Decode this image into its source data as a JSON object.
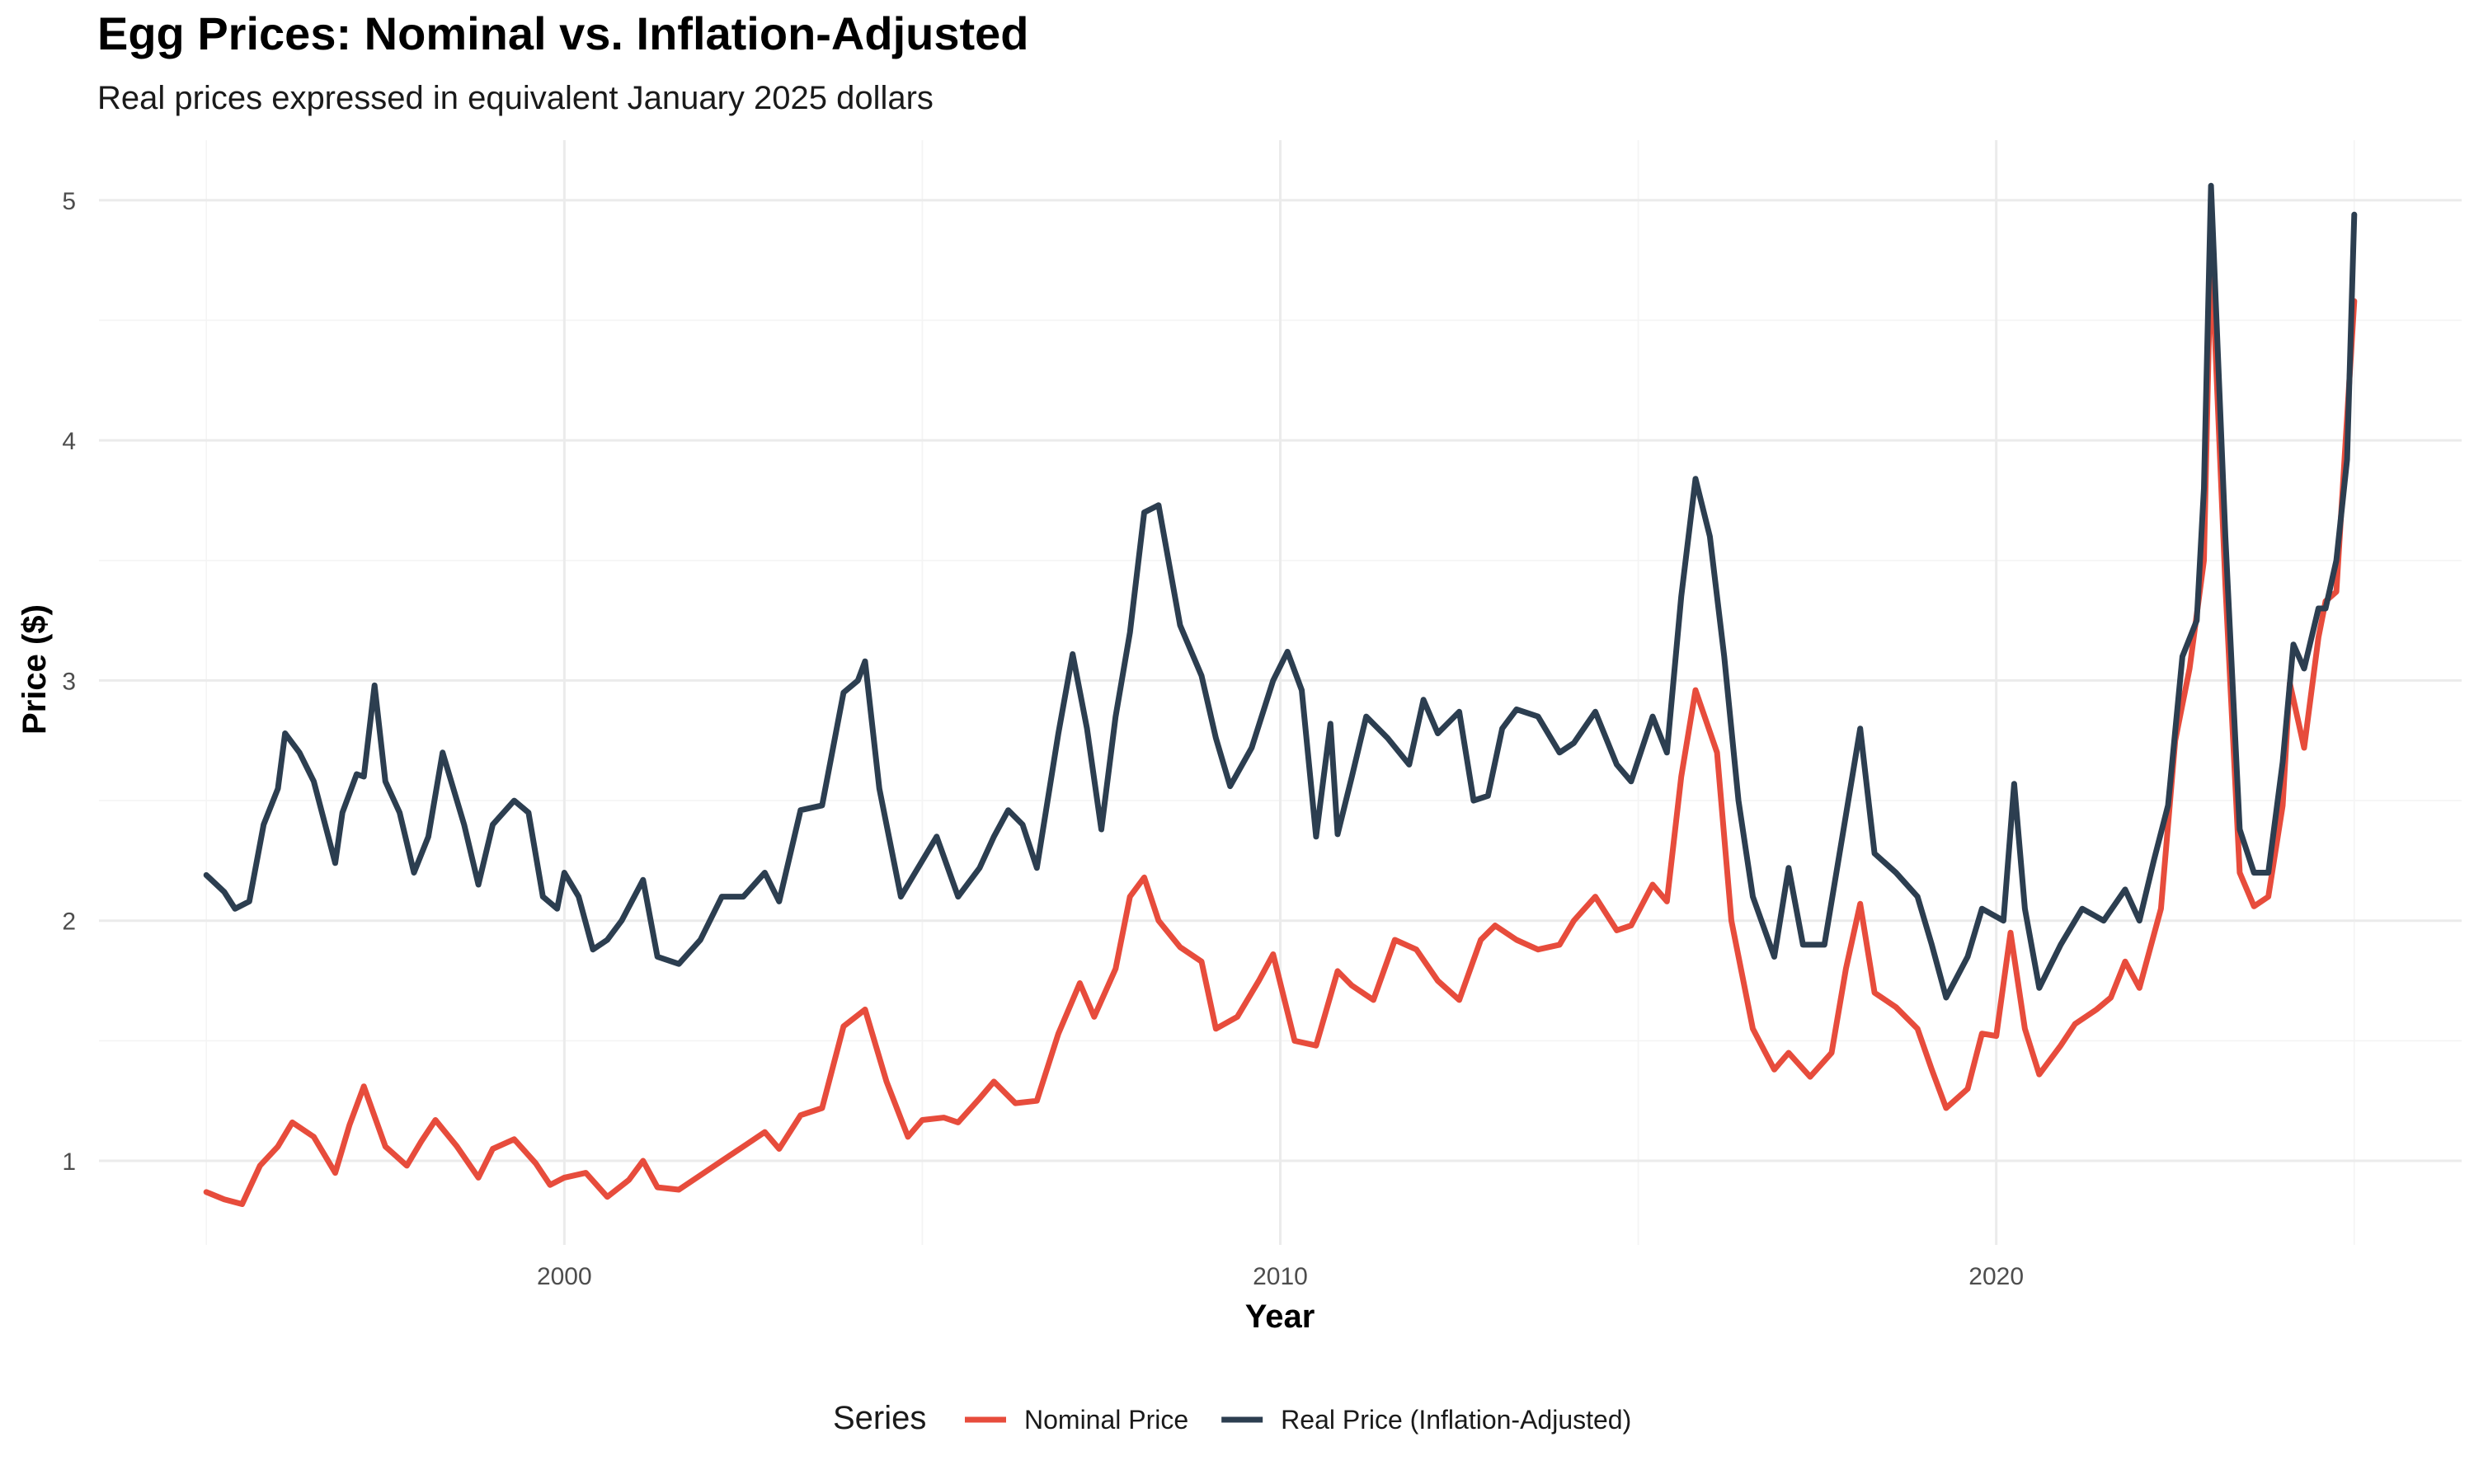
{
  "chart_data": {
    "type": "line",
    "title": "Egg Prices: Nominal vs. Inflation-Adjusted",
    "subtitle": "Real prices expressed in equivalent January 2025 dollars",
    "xlabel": "Year",
    "ylabel": "Price ($)",
    "xlim": [
      1993.5,
      2026.5
    ],
    "ylim": [
      0.65,
      5.25
    ],
    "x_ticks": [
      2000,
      2010,
      2020
    ],
    "y_ticks": [
      1,
      2,
      3,
      4,
      5
    ],
    "grid": true,
    "legend": {
      "title": "Series",
      "position": "bottom"
    },
    "series": [
      {
        "name": "Nominal Price",
        "color": "#E74C3C",
        "points": [
          [
            1995.0,
            0.87
          ],
          [
            1995.25,
            0.84
          ],
          [
            1995.5,
            0.82
          ],
          [
            1995.75,
            0.98
          ],
          [
            1996.0,
            1.06
          ],
          [
            1996.2,
            1.16
          ],
          [
            1996.5,
            1.1
          ],
          [
            1996.8,
            0.95
          ],
          [
            1997.0,
            1.15
          ],
          [
            1997.2,
            1.31
          ],
          [
            1997.5,
            1.06
          ],
          [
            1997.8,
            0.98
          ],
          [
            1998.0,
            1.08
          ],
          [
            1998.2,
            1.17
          ],
          [
            1998.5,
            1.06
          ],
          [
            1998.8,
            0.93
          ],
          [
            1999.0,
            1.05
          ],
          [
            1999.3,
            1.09
          ],
          [
            1999.6,
            0.99
          ],
          [
            1999.8,
            0.9
          ],
          [
            2000.0,
            0.93
          ],
          [
            2000.3,
            0.95
          ],
          [
            2000.6,
            0.85
          ],
          [
            2000.9,
            0.92
          ],
          [
            2001.1,
            1.0
          ],
          [
            2001.3,
            0.89
          ],
          [
            2001.6,
            0.88
          ],
          [
            2001.9,
            0.94
          ],
          [
            2002.2,
            1.0
          ],
          [
            2002.5,
            1.06
          ],
          [
            2002.8,
            1.12
          ],
          [
            2003.0,
            1.05
          ],
          [
            2003.3,
            1.19
          ],
          [
            2003.6,
            1.22
          ],
          [
            2003.9,
            1.56
          ],
          [
            2004.2,
            1.63
          ],
          [
            2004.5,
            1.33
          ],
          [
            2004.8,
            1.1
          ],
          [
            2005.0,
            1.17
          ],
          [
            2005.3,
            1.18
          ],
          [
            2005.5,
            1.16
          ],
          [
            2005.8,
            1.26
          ],
          [
            2006.0,
            1.33
          ],
          [
            2006.3,
            1.24
          ],
          [
            2006.6,
            1.25
          ],
          [
            2006.9,
            1.53
          ],
          [
            2007.2,
            1.74
          ],
          [
            2007.4,
            1.6
          ],
          [
            2007.7,
            1.8
          ],
          [
            2007.9,
            2.1
          ],
          [
            2008.1,
            2.18
          ],
          [
            2008.3,
            2.0
          ],
          [
            2008.6,
            1.89
          ],
          [
            2008.9,
            1.83
          ],
          [
            2009.1,
            1.55
          ],
          [
            2009.4,
            1.6
          ],
          [
            2009.7,
            1.75
          ],
          [
            2009.9,
            1.86
          ],
          [
            2010.2,
            1.5
          ],
          [
            2010.5,
            1.48
          ],
          [
            2010.8,
            1.79
          ],
          [
            2011.0,
            1.73
          ],
          [
            2011.3,
            1.67
          ],
          [
            2011.6,
            1.92
          ],
          [
            2011.9,
            1.88
          ],
          [
            2012.2,
            1.75
          ],
          [
            2012.5,
            1.67
          ],
          [
            2012.8,
            1.92
          ],
          [
            2013.0,
            1.98
          ],
          [
            2013.3,
            1.92
          ],
          [
            2013.6,
            1.88
          ],
          [
            2013.9,
            1.9
          ],
          [
            2014.1,
            2.0
          ],
          [
            2014.4,
            2.1
          ],
          [
            2014.7,
            1.96
          ],
          [
            2014.9,
            1.98
          ],
          [
            2015.2,
            2.15
          ],
          [
            2015.4,
            2.08
          ],
          [
            2015.6,
            2.6
          ],
          [
            2015.8,
            2.96
          ],
          [
            2016.1,
            2.7
          ],
          [
            2016.3,
            2.0
          ],
          [
            2016.6,
            1.55
          ],
          [
            2016.9,
            1.38
          ],
          [
            2017.1,
            1.45
          ],
          [
            2017.4,
            1.35
          ],
          [
            2017.7,
            1.45
          ],
          [
            2017.9,
            1.8
          ],
          [
            2018.1,
            2.07
          ],
          [
            2018.3,
            1.7
          ],
          [
            2018.6,
            1.64
          ],
          [
            2018.9,
            1.55
          ],
          [
            2019.1,
            1.38
          ],
          [
            2019.3,
            1.22
          ],
          [
            2019.6,
            1.3
          ],
          [
            2019.8,
            1.53
          ],
          [
            2020.0,
            1.52
          ],
          [
            2020.2,
            1.95
          ],
          [
            2020.4,
            1.55
          ],
          [
            2020.6,
            1.36
          ],
          [
            2020.9,
            1.48
          ],
          [
            2021.1,
            1.57
          ],
          [
            2021.4,
            1.63
          ],
          [
            2021.6,
            1.68
          ],
          [
            2021.8,
            1.83
          ],
          [
            2022.0,
            1.72
          ],
          [
            2022.3,
            2.05
          ],
          [
            2022.5,
            2.75
          ],
          [
            2022.7,
            3.05
          ],
          [
            2022.9,
            3.5
          ],
          [
            2023.0,
            4.82
          ],
          [
            2023.2,
            3.4
          ],
          [
            2023.4,
            2.2
          ],
          [
            2023.6,
            2.06
          ],
          [
            2023.8,
            2.1
          ],
          [
            2024.0,
            2.48
          ],
          [
            2024.1,
            2.99
          ],
          [
            2024.3,
            2.72
          ],
          [
            2024.5,
            3.18
          ],
          [
            2024.6,
            3.33
          ],
          [
            2024.75,
            3.37
          ],
          [
            2025.0,
            4.58
          ]
        ]
      },
      {
        "name": "Real Price (Inflation-Adjusted)",
        "color": "#2C3E50",
        "points": [
          [
            1995.0,
            2.19
          ],
          [
            1995.25,
            2.12
          ],
          [
            1995.4,
            2.05
          ],
          [
            1995.6,
            2.08
          ],
          [
            1995.8,
            2.4
          ],
          [
            1996.0,
            2.55
          ],
          [
            1996.1,
            2.78
          ],
          [
            1996.3,
            2.7
          ],
          [
            1996.5,
            2.58
          ],
          [
            1996.8,
            2.24
          ],
          [
            1996.9,
            2.45
          ],
          [
            1997.1,
            2.61
          ],
          [
            1997.2,
            2.6
          ],
          [
            1997.35,
            2.98
          ],
          [
            1997.5,
            2.58
          ],
          [
            1997.7,
            2.45
          ],
          [
            1997.9,
            2.2
          ],
          [
            1998.1,
            2.35
          ],
          [
            1998.3,
            2.7
          ],
          [
            1998.6,
            2.4
          ],
          [
            1998.8,
            2.15
          ],
          [
            1999.0,
            2.4
          ],
          [
            1999.3,
            2.5
          ],
          [
            1999.5,
            2.45
          ],
          [
            1999.7,
            2.1
          ],
          [
            1999.9,
            2.05
          ],
          [
            2000.0,
            2.2
          ],
          [
            2000.2,
            2.1
          ],
          [
            2000.4,
            1.88
          ],
          [
            2000.6,
            1.92
          ],
          [
            2000.8,
            2.0
          ],
          [
            2001.1,
            2.17
          ],
          [
            2001.3,
            1.85
          ],
          [
            2001.6,
            1.82
          ],
          [
            2001.9,
            1.92
          ],
          [
            2002.2,
            2.1
          ],
          [
            2002.5,
            2.1
          ],
          [
            2002.8,
            2.2
          ],
          [
            2003.0,
            2.08
          ],
          [
            2003.3,
            2.46
          ],
          [
            2003.6,
            2.48
          ],
          [
            2003.9,
            2.95
          ],
          [
            2004.1,
            3.0
          ],
          [
            2004.2,
            3.08
          ],
          [
            2004.4,
            2.55
          ],
          [
            2004.7,
            2.1
          ],
          [
            2004.9,
            2.2
          ],
          [
            2005.2,
            2.35
          ],
          [
            2005.5,
            2.1
          ],
          [
            2005.8,
            2.22
          ],
          [
            2006.0,
            2.35
          ],
          [
            2006.2,
            2.46
          ],
          [
            2006.4,
            2.4
          ],
          [
            2006.6,
            2.22
          ],
          [
            2006.9,
            2.78
          ],
          [
            2007.1,
            3.11
          ],
          [
            2007.3,
            2.8
          ],
          [
            2007.5,
            2.38
          ],
          [
            2007.7,
            2.85
          ],
          [
            2007.9,
            3.2
          ],
          [
            2008.1,
            3.7
          ],
          [
            2008.3,
            3.73
          ],
          [
            2008.6,
            3.23
          ],
          [
            2008.9,
            3.02
          ],
          [
            2009.1,
            2.76
          ],
          [
            2009.3,
            2.56
          ],
          [
            2009.6,
            2.72
          ],
          [
            2009.9,
            3.0
          ],
          [
            2010.1,
            3.12
          ],
          [
            2010.3,
            2.96
          ],
          [
            2010.5,
            2.35
          ],
          [
            2010.7,
            2.82
          ],
          [
            2010.8,
            2.36
          ],
          [
            2011.0,
            2.6
          ],
          [
            2011.2,
            2.85
          ],
          [
            2011.5,
            2.76
          ],
          [
            2011.8,
            2.65
          ],
          [
            2012.0,
            2.92
          ],
          [
            2012.2,
            2.78
          ],
          [
            2012.5,
            2.87
          ],
          [
            2012.7,
            2.5
          ],
          [
            2012.9,
            2.52
          ],
          [
            2013.1,
            2.8
          ],
          [
            2013.3,
            2.88
          ],
          [
            2013.6,
            2.85
          ],
          [
            2013.9,
            2.7
          ],
          [
            2014.1,
            2.74
          ],
          [
            2014.4,
            2.87
          ],
          [
            2014.7,
            2.65
          ],
          [
            2014.9,
            2.58
          ],
          [
            2015.2,
            2.85
          ],
          [
            2015.4,
            2.7
          ],
          [
            2015.6,
            3.35
          ],
          [
            2015.8,
            3.84
          ],
          [
            2016.0,
            3.6
          ],
          [
            2016.2,
            3.1
          ],
          [
            2016.4,
            2.5
          ],
          [
            2016.6,
            2.1
          ],
          [
            2016.9,
            1.85
          ],
          [
            2017.1,
            2.22
          ],
          [
            2017.3,
            1.9
          ],
          [
            2017.6,
            1.9
          ],
          [
            2017.9,
            2.44
          ],
          [
            2018.1,
            2.8
          ],
          [
            2018.3,
            2.28
          ],
          [
            2018.6,
            2.2
          ],
          [
            2018.9,
            2.1
          ],
          [
            2019.1,
            1.9
          ],
          [
            2019.3,
            1.68
          ],
          [
            2019.6,
            1.85
          ],
          [
            2019.8,
            2.05
          ],
          [
            2020.1,
            2.0
          ],
          [
            2020.25,
            2.57
          ],
          [
            2020.4,
            2.05
          ],
          [
            2020.6,
            1.72
          ],
          [
            2020.9,
            1.9
          ],
          [
            2021.2,
            2.05
          ],
          [
            2021.5,
            2.0
          ],
          [
            2021.8,
            2.13
          ],
          [
            2022.0,
            2.0
          ],
          [
            2022.2,
            2.25
          ],
          [
            2022.4,
            2.48
          ],
          [
            2022.6,
            3.1
          ],
          [
            2022.8,
            3.25
          ],
          [
            2022.9,
            3.8
          ],
          [
            2023.0,
            5.06
          ],
          [
            2023.2,
            3.6
          ],
          [
            2023.4,
            2.38
          ],
          [
            2023.6,
            2.2
          ],
          [
            2023.8,
            2.2
          ],
          [
            2024.0,
            2.66
          ],
          [
            2024.15,
            3.15
          ],
          [
            2024.3,
            3.05
          ],
          [
            2024.5,
            3.3
          ],
          [
            2024.6,
            3.3
          ],
          [
            2024.75,
            3.5
          ],
          [
            2024.9,
            3.92
          ],
          [
            2025.0,
            4.94
          ]
        ]
      }
    ]
  }
}
